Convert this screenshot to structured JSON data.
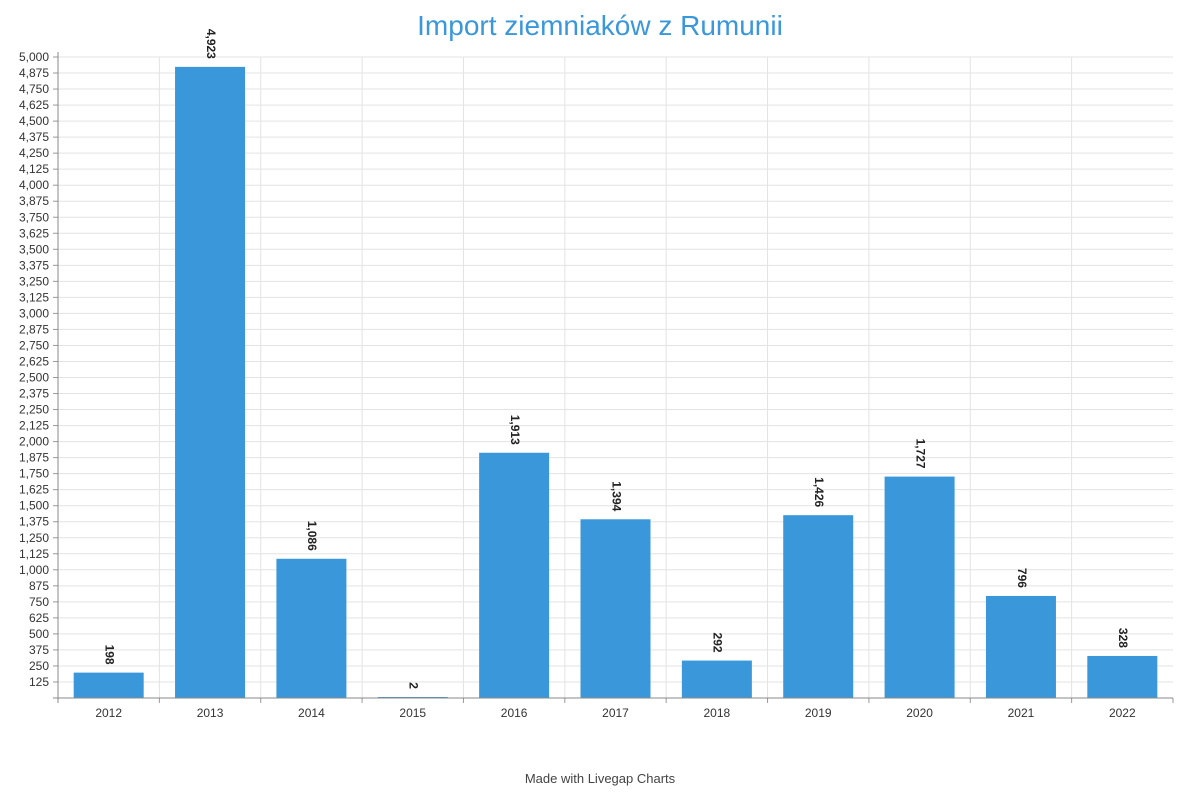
{
  "chart_data": {
    "type": "bar",
    "title": "Import ziemniaków z Rumunii",
    "categories": [
      "2012",
      "2013",
      "2014",
      "2015",
      "2016",
      "2017",
      "2018",
      "2019",
      "2020",
      "2021",
      "2022"
    ],
    "values": [
      198,
      4923,
      1086,
      2,
      1913,
      1394,
      292,
      1426,
      1727,
      796,
      328
    ],
    "data_labels": [
      "198",
      "4,923",
      "1,086",
      "2",
      "1,913",
      "1,394",
      "292",
      "1,426",
      "1,727",
      "796",
      "328"
    ],
    "xlabel": "",
    "ylabel": "",
    "ylim": [
      0,
      5000
    ],
    "y_tick_step": 125,
    "grid": true,
    "bar_color": "#3a97d9"
  },
  "credit": "Made with Livegap Charts"
}
